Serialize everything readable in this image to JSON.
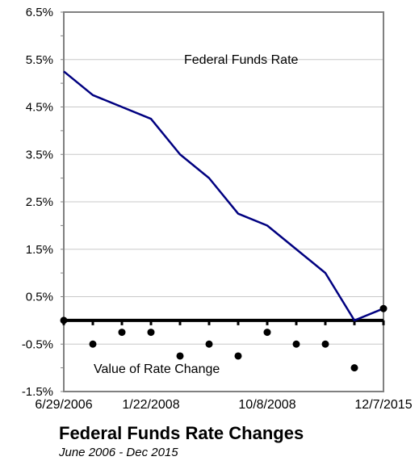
{
  "chart_data": {
    "type": "line",
    "title": "Federal Funds Rate Changes",
    "subtitle": "June 2006 - Dec 2015",
    "xlabel": "",
    "ylabel": "",
    "ylim": [
      -1.5,
      6.5
    ],
    "y_ticks": [
      "6.5%",
      "5.5%",
      "4.5%",
      "3.5%",
      "2.5%",
      "1.5%",
      "0.5%",
      "-0.5%",
      "-1.5%"
    ],
    "x_tick_labels": [
      "6/29/2006",
      "1/22/2008",
      "10/8/2008",
      "12/7/2015"
    ],
    "grid": true,
    "series": [
      {
        "name": "Federal Funds Rate",
        "style": "line",
        "color": "#000080",
        "values": [
          5.25,
          4.75,
          4.5,
          4.25,
          3.5,
          3.0,
          2.25,
          2.0,
          1.5,
          1.0,
          0.0,
          0.25
        ]
      },
      {
        "name": "Value of Rate Change",
        "style": "markers",
        "color": "#000000",
        "values": [
          0.0,
          -0.5,
          -0.25,
          -0.25,
          -0.75,
          -0.5,
          -0.75,
          -0.25,
          -0.5,
          -0.5,
          -1.0,
          0.25
        ]
      }
    ]
  }
}
